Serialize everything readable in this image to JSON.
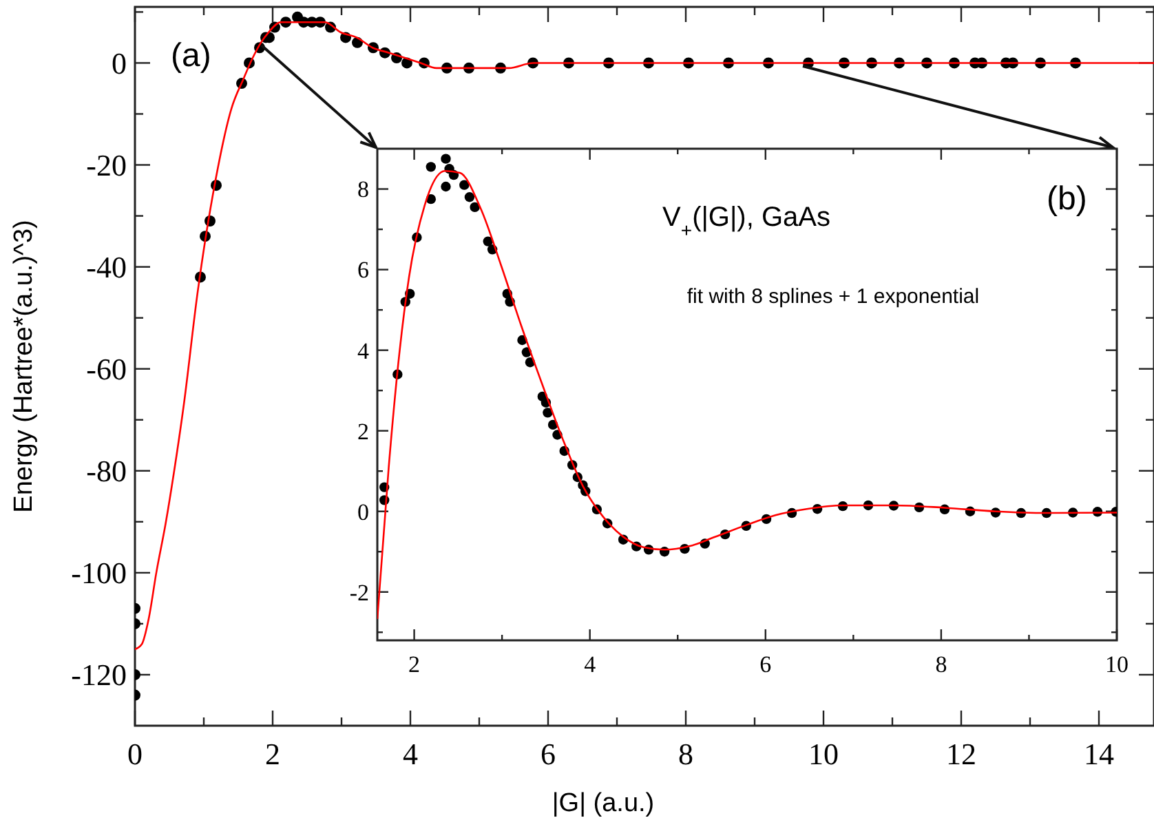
{
  "chart_data": [
    {
      "type": "scatter",
      "xlabel": "|G| (a.u.)",
      "ylabel": "Energy (Hartree*(a.u.)^3)",
      "annotations": [
        "(a)"
      ],
      "xlim": [
        0,
        14.8
      ],
      "ylim": [
        -130,
        11
      ],
      "xticks": [
        0,
        {
          "value": 1,
          "label": null
        },
        2,
        {
          "value": 3,
          "label": null
        },
        4,
        {
          "value": 5,
          "label": null
        },
        6,
        {
          "value": 7,
          "label": null
        },
        8,
        {
          "value": 9,
          "label": null
        },
        10,
        {
          "value": 11,
          "label": null
        },
        12,
        {
          "value": 13,
          "label": null
        },
        14
      ],
      "yticks": [
        -120,
        {
          "value": -110,
          "label": null
        },
        -100,
        {
          "value": -90,
          "label": null
        },
        -80,
        {
          "value": -70,
          "label": null
        },
        -60,
        {
          "value": -50,
          "label": null
        },
        -40,
        {
          "value": -30,
          "label": null
        },
        -20,
        {
          "value": -10,
          "label": null
        },
        0,
        {
          "value": 10,
          "label": null
        }
      ],
      "marker": "circle",
      "series": [
        {
          "color": "#000000",
          "x": [
            0,
            0,
            0,
            0,
            0.95,
            1.02,
            1.09,
            1.18,
            1.55,
            1.66,
            1.81,
            1.9,
            1.95,
            2.03,
            2.19,
            2.36,
            2.45,
            2.57,
            2.69,
            2.84,
            3.06,
            3.23,
            3.46,
            3.63,
            3.8,
            3.95,
            4.2,
            4.53,
            4.85,
            5.31,
            5.78,
            6.3,
            6.88,
            7.46,
            8.04,
            8.62,
            9.2,
            9.78,
            10.3,
            10.7,
            11.1,
            11.5,
            11.9,
            12.2,
            12.3,
            12.65,
            12.75,
            13.15,
            13.66
          ],
          "values": [
            -107,
            -110,
            -120,
            -124,
            -42,
            -34,
            -31,
            -24,
            -4,
            0,
            3,
            5,
            5,
            7,
            8,
            9,
            8,
            8,
            8,
            7,
            5,
            4,
            3,
            2,
            1,
            0,
            0,
            -1,
            -1,
            -1,
            0,
            0,
            0,
            0,
            0,
            0,
            0,
            0,
            0,
            0,
            0,
            0,
            0,
            0,
            0,
            0,
            0,
            0,
            0
          ]
        },
        {
          "type": "line",
          "color": "#ff0000",
          "marker": "none",
          "x": [
            0,
            0.1,
            0.2,
            0.31,
            0.45,
            0.57,
            0.71,
            0.91,
            1.17,
            1.4,
            1.58,
            1.71,
            1.83,
            1.94,
            2.12,
            2.35,
            2.52,
            2.76,
            2.99,
            3.22,
            3.45,
            3.69,
            3.92,
            4.15,
            4.38,
            4.61,
            4.85,
            5.14,
            5.43,
            5.78,
            6.12,
            6.47,
            6.88,
            7.46,
            8.04,
            8.62,
            9.2,
            10,
            12,
            14.8
          ],
          "values": [
            -115,
            -114,
            -109,
            -100,
            -90,
            -80,
            -67,
            -45,
            -23,
            -9,
            -3,
            1,
            4,
            6,
            8,
            8,
            8,
            8,
            6,
            5,
            3,
            2,
            1,
            0,
            -1,
            -1,
            -1,
            -1,
            -1,
            0,
            0,
            0,
            0,
            0,
            0,
            0,
            0,
            0,
            0,
            0
          ]
        }
      ]
    },
    {
      "type": "scatter",
      "annotations": [
        "(b)",
        "V$_{+}$(|G|), GaAs",
        "fit with 8 splines + 1 exponential"
      ],
      "xlim": [
        1.58,
        10
      ],
      "ylim": [
        -3.2,
        9
      ],
      "xticks": [
        2,
        {
          "value": 3,
          "label": null
        },
        4,
        {
          "value": 5,
          "label": null
        },
        6,
        {
          "value": 7,
          "label": null
        },
        8,
        {
          "value": 9,
          "label": null
        },
        10
      ],
      "yticks": [
        {
          "value": -3,
          "label": null
        },
        -2,
        {
          "value": -1,
          "label": null
        },
        0,
        {
          "value": 1,
          "label": null
        },
        2,
        {
          "value": 3,
          "label": null
        },
        4,
        {
          "value": 5,
          "label": null
        },
        6,
        {
          "value": 7,
          "label": null
        },
        8
      ],
      "marker": "circle",
      "series": [
        {
          "color": "#000000",
          "x": [
            1.66,
            1.66,
            1.81,
            1.9,
            1.95,
            2.03,
            2.19,
            2.19,
            2.36,
            2.36,
            2.4,
            2.45,
            2.57,
            2.63,
            2.69,
            2.84,
            2.89,
            3.06,
            3.09,
            3.23,
            3.28,
            3.32,
            3.46,
            3.5,
            3.52,
            3.58,
            3.63,
            3.71,
            3.8,
            3.86,
            3.92,
            3.95,
            4.08,
            4.2,
            4.38,
            4.53,
            4.67,
            4.85,
            5.08,
            5.31,
            5.54,
            5.78,
            6.01,
            6.3,
            6.59,
            6.88,
            7.17,
            7.46,
            7.75,
            8.04,
            8.33,
            8.62,
            8.91,
            9.2,
            9.5,
            9.78,
            9.99
          ],
          "values": [
            0.6,
            0.28,
            3.4,
            5.2,
            5.4,
            6.8,
            7.75,
            8.55,
            8.75,
            8.06,
            8.5,
            8.35,
            8.1,
            7.8,
            7.55,
            6.7,
            6.5,
            5.4,
            5.2,
            4.25,
            3.95,
            3.7,
            2.85,
            2.7,
            2.45,
            2.15,
            1.9,
            1.5,
            1.15,
            0.85,
            0.65,
            0.5,
            0.05,
            -0.3,
            -0.7,
            -0.87,
            -0.95,
            -1.0,
            -0.93,
            -0.8,
            -0.57,
            -0.36,
            -0.19,
            -0.04,
            0.06,
            0.13,
            0.15,
            0.14,
            0.1,
            0.05,
            0,
            -0.03,
            -0.04,
            -0.04,
            -0.03,
            -0.01,
            -0.01
          ]
        },
        {
          "type": "line",
          "color": "#ff0000",
          "marker": "none",
          "x": [
            1.58,
            1.71,
            1.83,
            1.94,
            2.12,
            2.35,
            2.52,
            2.76,
            2.99,
            3.22,
            3.45,
            3.69,
            3.92,
            4.15,
            4.38,
            4.61,
            4.85,
            5.14,
            5.43,
            5.78,
            6.12,
            6.47,
            6.88,
            7.46,
            8.04,
            8.62,
            9.2,
            10
          ],
          "values": [
            -2.67,
            1.1,
            3.9,
            5.8,
            7.6,
            8.45,
            8.4,
            7.5,
            6.1,
            4.6,
            3.2,
            1.8,
            0.63,
            -0.13,
            -0.63,
            -0.89,
            -0.95,
            -0.86,
            -0.63,
            -0.34,
            -0.09,
            0.06,
            0.15,
            0.15,
            0.09,
            0,
            -0.04,
            -0.03
          ]
        }
      ]
    }
  ]
}
